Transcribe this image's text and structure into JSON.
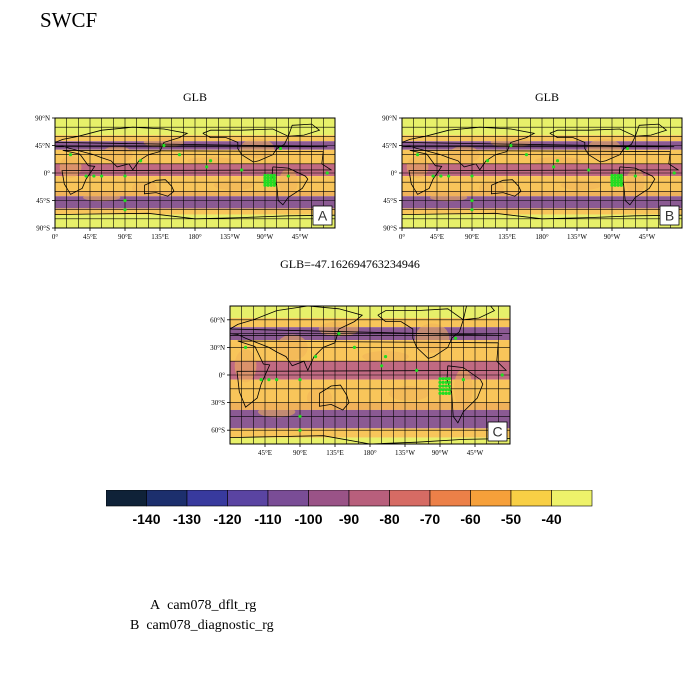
{
  "title": "SWCF",
  "panels": [
    {
      "id": "A",
      "title": "GLB",
      "tag": "A",
      "lat_ticks": [
        "90°N",
        "45°N",
        "0°",
        "45°S",
        "90°S"
      ],
      "lon_ticks": [
        "0°",
        "45°E",
        "90°E",
        "135°E",
        "180°",
        "135°W",
        "90°W",
        "45°W"
      ]
    },
    {
      "id": "B",
      "title": "GLB",
      "tag": "B",
      "lat_ticks": [
        "90°N",
        "45°N",
        "0°",
        "45°S",
        "90°S"
      ],
      "lon_ticks": [
        "0°",
        "45°E",
        "90°E",
        "135°E",
        "180°",
        "135°W",
        "90°W",
        "45°W"
      ]
    },
    {
      "id": "C",
      "title": "GLB=-47.162694763234946",
      "tag": "C",
      "lat_ticks": [
        "60°N",
        "30°N",
        "0°",
        "30°S",
        "60°S"
      ],
      "lon_ticks": [
        "45°E",
        "90°E",
        "135°E",
        "180°",
        "135°W",
        "90°W",
        "45°W"
      ]
    }
  ],
  "colorbar": {
    "labels": [
      "-140",
      "-130",
      "-120",
      "-110",
      "-100",
      "-90",
      "-80",
      "-70",
      "-60",
      "-50",
      "-40"
    ],
    "colors": [
      "#0f2238",
      "#1c2f6d",
      "#383a9e",
      "#5a44a2",
      "#7a4d96",
      "#9a5387",
      "#b85f7c",
      "#d66b64",
      "#ec8048",
      "#f6a03a",
      "#f8cf45",
      "#eef26a"
    ]
  },
  "legend": [
    {
      "tag": "A",
      "name": "cam078_dflt_rg"
    },
    {
      "tag": "B",
      "name": "cam078_diagnostic_rg"
    }
  ],
  "field_colors": {
    "polar": "#e7f06a",
    "subtropics": "#f8c55a",
    "storm_track": "#8b5a93",
    "itcz": "#c06a82",
    "land": "#f0b25a",
    "significance": "#22dd22",
    "coast": "#000000",
    "grid": "#000000"
  }
}
